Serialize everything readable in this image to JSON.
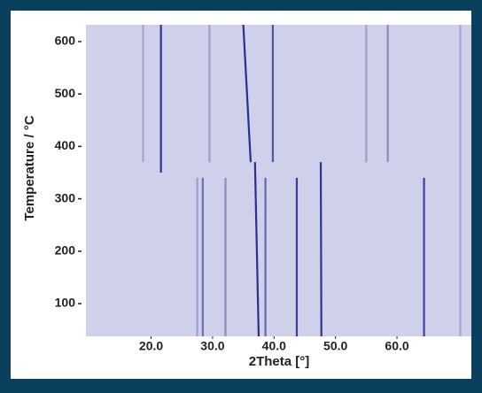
{
  "chart_data": {
    "type": "heatmap",
    "x_label": "2Theta [°]",
    "y_label": "Temperature / °C",
    "xlim": [
      9.4,
      72.1
    ],
    "ylim": [
      37.5,
      632
    ],
    "xticks": [
      {
        "value": 20,
        "label": "20.0"
      },
      {
        "value": 30,
        "label": "30.0"
      },
      {
        "value": 40,
        "label": "40.0"
      },
      {
        "value": 50,
        "label": "50.0"
      },
      {
        "value": 60,
        "label": "60.0"
      }
    ],
    "yticks": [
      100,
      200,
      300,
      400,
      500,
      600
    ],
    "background": "#cfd0ea",
    "lines": [
      {
        "x0": 37.5,
        "t0": 37.5,
        "x1": 36.9,
        "t1": 370,
        "color": "#2c2f8c"
      },
      {
        "x0": 36.2,
        "t0": 370,
        "x1": 35.0,
        "t1": 632,
        "color": "#2c2f8c"
      },
      {
        "x0": 47.7,
        "t0": 37.5,
        "x1": 47.6,
        "t1": 370,
        "color": "#2f3290"
      },
      {
        "x0": 43.7,
        "t0": 37.5,
        "x1": 43.7,
        "t1": 340,
        "color": "#3a3d98"
      },
      {
        "x0": 64.4,
        "t0": 37.5,
        "x1": 64.4,
        "t1": 340,
        "color": "#3d40a0"
      },
      {
        "x0": 21.6,
        "t0": 350,
        "x1": 21.6,
        "t1": 632,
        "color": "#30338f"
      },
      {
        "x0": 39.8,
        "t0": 370,
        "x1": 39.8,
        "t1": 632,
        "color": "#5457a8"
      },
      {
        "x0": 28.4,
        "t0": 37.5,
        "x1": 28.4,
        "t1": 340,
        "color": "#6e70b5"
      },
      {
        "x0": 32.1,
        "t0": 37.5,
        "x1": 32.1,
        "t1": 340,
        "color": "#8a8cc4"
      },
      {
        "x0": 27.5,
        "t0": 37.5,
        "x1": 27.5,
        "t1": 340,
        "color": "#9d9fcd"
      },
      {
        "x0": 38.6,
        "t0": 37.5,
        "x1": 38.6,
        "t1": 340,
        "color": "#6567b0"
      },
      {
        "x0": 70.3,
        "t0": 37.5,
        "x1": 70.3,
        "t1": 632,
        "color": "#a4a6d2"
      },
      {
        "x0": 18.7,
        "t0": 370,
        "x1": 18.7,
        "t1": 632,
        "color": "#a4a6d2"
      },
      {
        "x0": 29.5,
        "t0": 370,
        "x1": 29.5,
        "t1": 632,
        "color": "#9d9fcd"
      },
      {
        "x0": 55.0,
        "t0": 370,
        "x1": 55.0,
        "t1": 632,
        "color": "#9d9fcd"
      },
      {
        "x0": 58.5,
        "t0": 370,
        "x1": 58.5,
        "t1": 632,
        "color": "#8a8cc4"
      }
    ]
  }
}
